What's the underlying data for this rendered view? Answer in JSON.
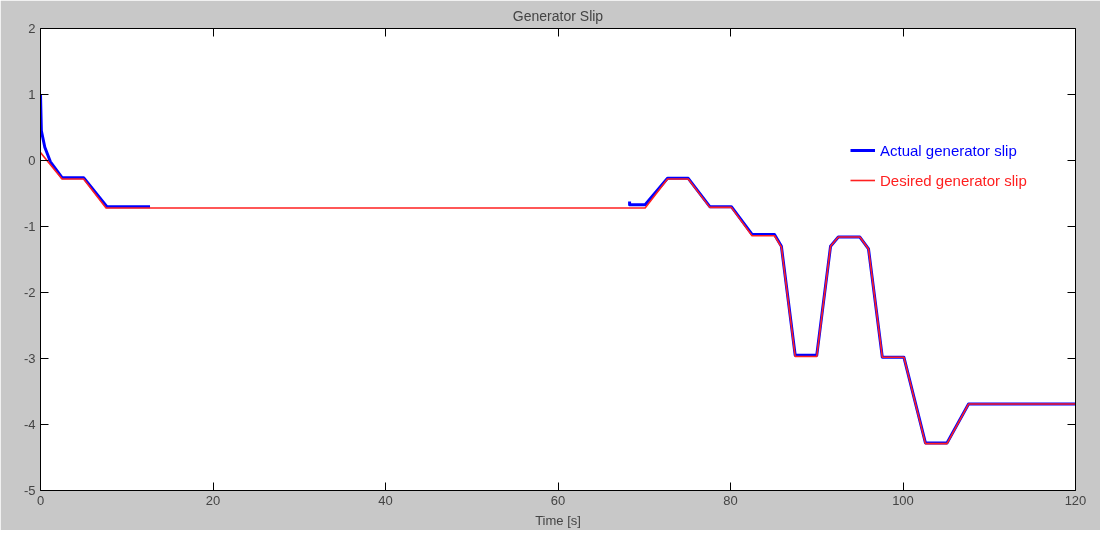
{
  "chart_data": {
    "type": "line",
    "title": "Generator Slip",
    "xlabel": "Time [s]",
    "xlim": [
      0,
      120
    ],
    "xticks": [
      0,
      20,
      40,
      60,
      80,
      100,
      120
    ],
    "ylim": [
      -5,
      2
    ],
    "yticks": [
      -5,
      -4,
      -3,
      -2,
      -1,
      0,
      1,
      2
    ],
    "grid": false,
    "legend": "top right",
    "line_style": "solid",
    "marker": "none",
    "series": [
      {
        "name": "Actual generator slip",
        "color": "#0000ff",
        "x": [
          0,
          0.1,
          0.5,
          1.15,
          2.5,
          5,
          7.7,
          12.7,
          40,
          68.3,
          68.3,
          70.1,
          72.7,
          75.1,
          77.6,
          80.1,
          82.5,
          85.1,
          85.9,
          87.5,
          90,
          91.6,
          92.5,
          95,
          96,
          97.6,
          100.1,
          102.6,
          105.1,
          107.6,
          120
        ],
        "values": [
          1.0,
          0.45,
          0.2,
          -0.02,
          -0.26,
          -0.26,
          -0.7,
          -0.7,
          null,
          -0.62,
          -0.67,
          -0.67,
          -0.27,
          -0.27,
          -0.7,
          -0.7,
          -1.12,
          -1.12,
          -1.3,
          -2.95,
          -2.95,
          -1.3,
          -1.16,
          -1.16,
          -1.34,
          -2.98,
          -2.98,
          -4.28,
          -4.28,
          -3.69,
          -3.69
        ]
      },
      {
        "name": "Desired generator slip",
        "color": "#ff2020",
        "x": [
          0,
          2.5,
          5,
          7.6,
          70.1,
          72.7,
          75.1,
          77.6,
          80.1,
          82.5,
          85.1,
          85.9,
          87.5,
          90,
          91.6,
          92.5,
          95,
          96,
          97.6,
          100.1,
          102.6,
          105.1,
          107.6,
          120
        ],
        "values": [
          0.12,
          -0.28,
          -0.28,
          -0.72,
          -0.72,
          -0.28,
          -0.28,
          -0.71,
          -0.71,
          -1.14,
          -1.14,
          -1.31,
          -2.97,
          -2.97,
          -1.3,
          -1.16,
          -1.16,
          -1.34,
          -2.98,
          -2.98,
          -4.29,
          -4.29,
          -3.69,
          -3.69
        ]
      }
    ]
  }
}
